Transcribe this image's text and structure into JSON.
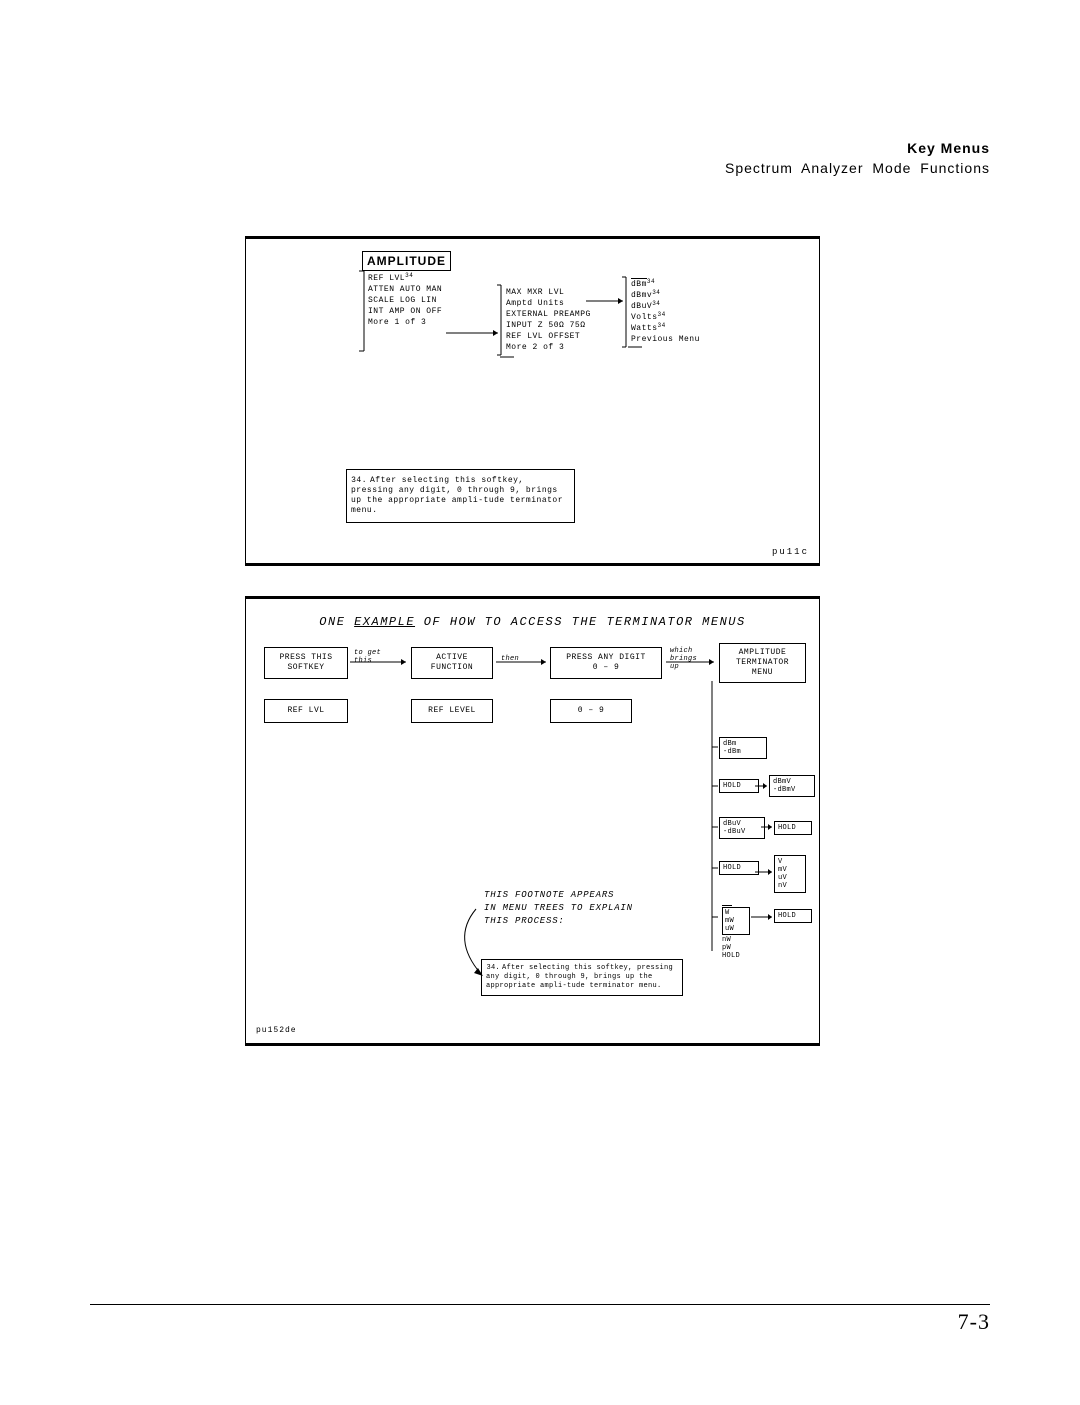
{
  "header": {
    "title": "Key Menus",
    "subtitle": "Spectrum  Analyzer  Mode  Functions"
  },
  "figure1": {
    "main_label": "AMPLITUDE",
    "col1": [
      "REF LVL",
      "ATTEN AUTO MAN",
      "SCALE LOG LIN",
      "INT AMP ON OFF",
      "",
      "More 1 of 3"
    ],
    "col1_sup": {
      "0": "34"
    },
    "col2": [
      "MAX MXR LVL",
      "Amptd Units",
      "EXTERNAL PREAMPG",
      "INPUT Z 50Ω 75Ω",
      "REF LVL OFFSET",
      "More 2 of 3"
    ],
    "col3": [
      "dBm",
      "dBmv",
      "dBuV",
      "Volts",
      "Watts",
      "Previous Menu"
    ],
    "col3_sup": {
      "0": "34",
      "1": "34",
      "2": "34",
      "3": "34",
      "4": "34"
    },
    "footnote": {
      "num": "34.",
      "text": "After selecting this softkey, pressing any digit, 0 through 9, brings up the appropriate ampli-tude terminator menu."
    },
    "ref": "pu11c"
  },
  "figure2": {
    "title_pre": "ONE ",
    "title_ul": "EXAMPLE",
    "title_post": " OF HOW TO ACCESS THE TERMINATOR MENUS",
    "row_labels": {
      "b1": "PRESS THIS\nSOFTKEY",
      "a1": "to get\nthis",
      "b2": "ACTIVE\nFUNCTION",
      "a2": "then",
      "b3": "PRESS ANY DIGIT\n0 – 9",
      "a3": "which\nbrings\nup",
      "b4": "AMPLITUDE\nTERMINATOR\nMENU"
    },
    "row2": {
      "b1": "REF LVL",
      "b2": "REF LEVEL",
      "b3": "0 – 9"
    },
    "terminator": {
      "m1": {
        "lines": [
          "dBm",
          "-dBm"
        ]
      },
      "m2a": "HOLD",
      "m2b": {
        "lines": [
          "dBmV",
          "-dBmV"
        ]
      },
      "m3a": {
        "lines": [
          "dBuV",
          "-dBuV"
        ]
      },
      "m3b": "HOLD",
      "m4a": "HOLD",
      "m4b": {
        "lines": [
          "V",
          "mV",
          "uV",
          "nV"
        ]
      },
      "m5a": {
        "lines": [
          "W",
          "mW",
          "uW",
          "nW",
          "pW",
          "HOLD"
        ]
      },
      "m5b": "HOLD"
    },
    "footnote_intro": "THIS FOOTNOTE APPEARS\nIN MENU TREES TO EXPLAIN\nTHIS PROCESS:",
    "footnote": {
      "num": "34.",
      "text": "After selecting this softkey, pressing any digit, 0 through 9, brings up the appropriate ampli-tude terminator menu."
    },
    "ref": "pu152de"
  },
  "pagenum": "7-3"
}
